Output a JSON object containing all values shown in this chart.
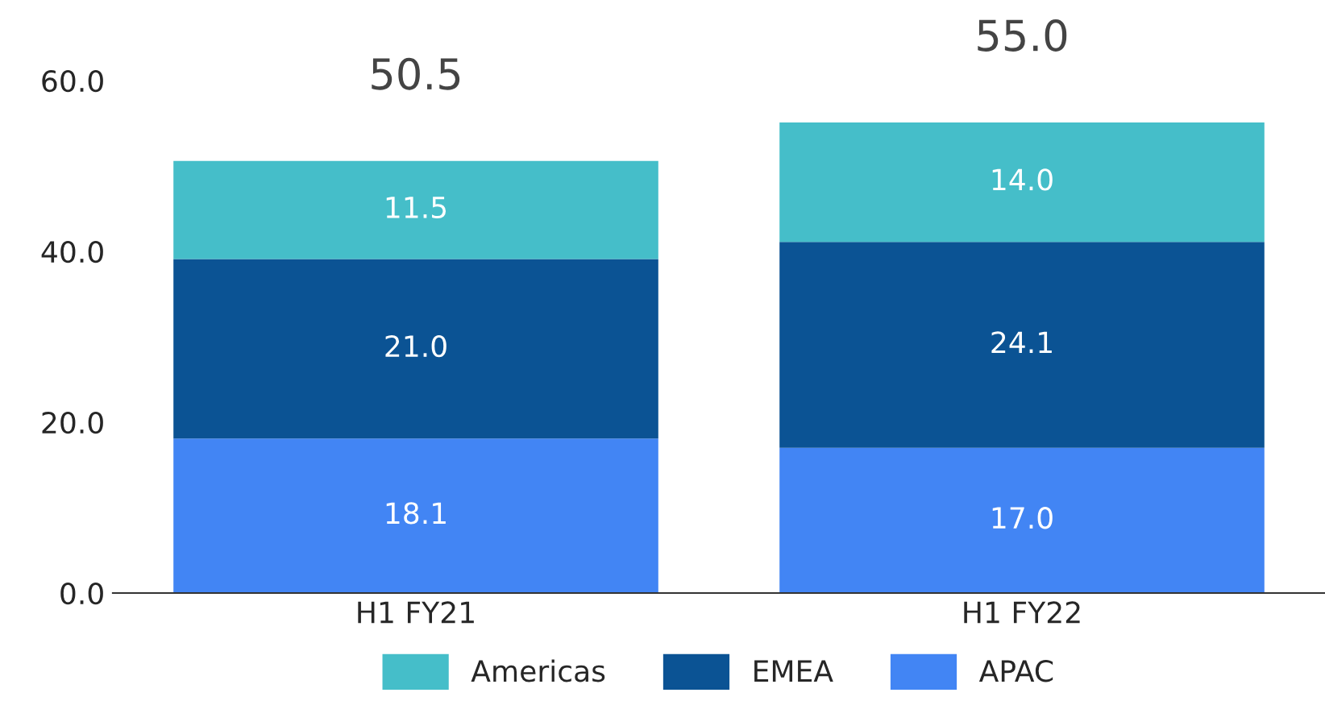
{
  "chart_data": {
    "type": "bar",
    "stacked": true,
    "categories": [
      "H1 FY21",
      "H1 FY22"
    ],
    "series": [
      {
        "name": "APAC",
        "color": "#4285f4",
        "values": [
          18.1,
          17.0
        ],
        "value_labels": [
          "18.1",
          "17.0"
        ]
      },
      {
        "name": "EMEA",
        "color": "#0b5394",
        "values": [
          21.0,
          24.1
        ],
        "value_labels": [
          "21.0",
          "24.1"
        ]
      },
      {
        "name": "Americas",
        "color": "#45bec9",
        "values": [
          11.5,
          14.0
        ],
        "value_labels": [
          "11.5",
          "14.0"
        ]
      }
    ],
    "totals": [
      "50.5",
      "55.0"
    ],
    "ylim": [
      0,
      60
    ],
    "yticks": [
      {
        "value": 0,
        "label": "0.0"
      },
      {
        "value": 20,
        "label": "20.0"
      },
      {
        "value": 40,
        "label": "40.0"
      },
      {
        "value": 60,
        "label": "60.0"
      }
    ],
    "grid": false,
    "legend": "bottom"
  }
}
